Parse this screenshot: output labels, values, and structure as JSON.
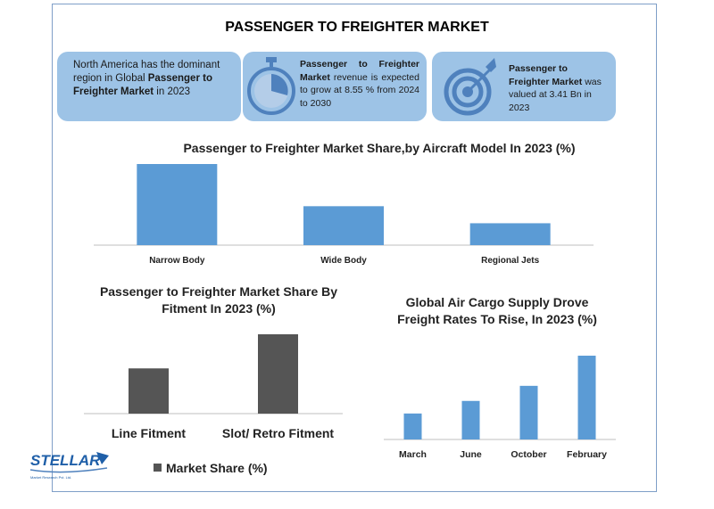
{
  "title": "PASSENGER TO FREIGHTER MARKET",
  "cards": [
    {
      "icon": "globe-region",
      "parts": [
        {
          "text": "North America has the dominant region in Global ",
          "bold": false
        },
        {
          "text": "Passenger to Freighter Market",
          "bold": true
        },
        {
          "text": " in 2023",
          "bold": false
        }
      ]
    },
    {
      "icon": "stopwatch-icon",
      "parts": [
        {
          "text": "Passenger to Freighter Market",
          "bold": true
        },
        {
          "text": " revenue is expected to grow at 8.55 % from 2024 to 2030",
          "bold": false
        }
      ]
    },
    {
      "icon": "target-icon",
      "parts": [
        {
          "text": "Passenger to Freighter Market",
          "bold": true
        },
        {
          "text": " was valued at 3.41 Bn in 2023",
          "bold": false
        }
      ]
    }
  ],
  "logo_text": "STELLAR",
  "logo_subtext": "Market Research Pvt. Ltd.",
  "legend_label": "Market Share (%)",
  "colors": {
    "blue_bar": "#5b9bd5",
    "gray_bar": "#555555",
    "card_bg": "#9dc3e6"
  },
  "chart_data": [
    {
      "type": "bar",
      "title": "Passenger to Freighter Market Share,by Aircraft Model In 2023 (%)",
      "categories": [
        "Narrow Body",
        "Wide Body",
        "Regional Jets"
      ],
      "values": [
        100,
        48,
        27
      ],
      "ylim": [
        0,
        100
      ],
      "grid": false
    },
    {
      "type": "bar",
      "title": "Passenger to Freighter Market Share By Fitment In 2023 (%)",
      "categories": [
        "Line Fitment",
        "Slot/ Retro Fitment"
      ],
      "series": [
        {
          "name": "Market Share (%)",
          "values": [
            57,
            100
          ]
        }
      ],
      "ylim": [
        0,
        100
      ],
      "legend": "bottom",
      "grid": false
    },
    {
      "type": "bar",
      "title": "Global Air Cargo Supply Drove Freight Rates To Rise, In 2023 (%)",
      "categories": [
        "March",
        "June",
        "October",
        "February"
      ],
      "values": [
        31,
        46,
        64,
        100
      ],
      "ylim": [
        0,
        100
      ],
      "grid": false
    }
  ]
}
